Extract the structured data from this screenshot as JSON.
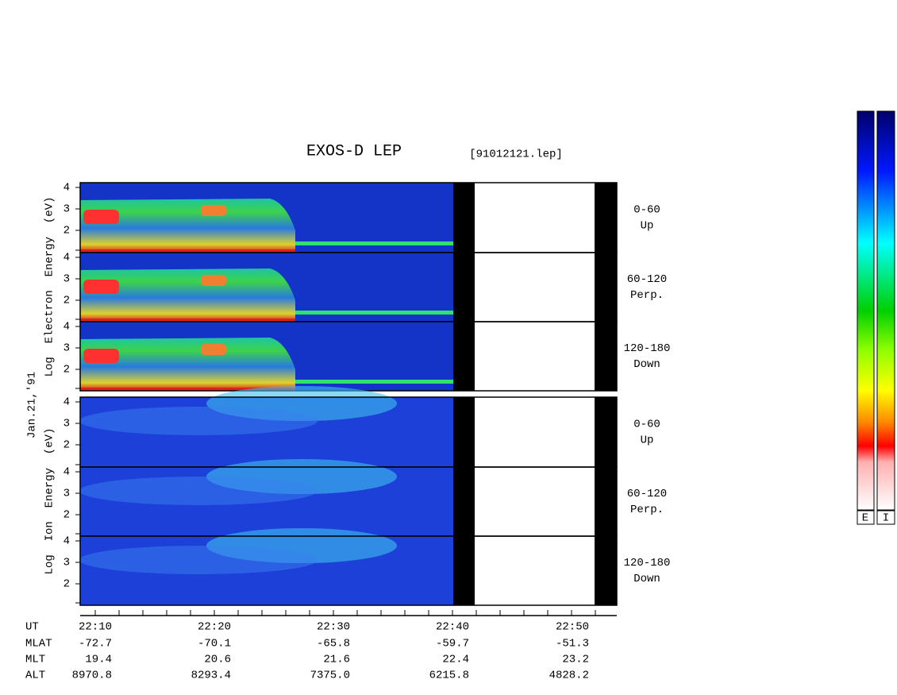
{
  "header": {
    "title": "EXOS-D LEP",
    "file": "[91012121.lep]"
  },
  "date": "Jan.21,'91",
  "electron": {
    "axis_label": "Log  Electron  Energy  (eV)",
    "panels": [
      {
        "angle": "0-60",
        "direction": "Up",
        "ticks": [
          "4",
          "3",
          "2"
        ]
      },
      {
        "angle": "60-120",
        "direction": "Perp.",
        "ticks": [
          "4",
          "3",
          "2"
        ]
      },
      {
        "angle": "120-180",
        "direction": "Down",
        "ticks": [
          "4",
          "3",
          "2"
        ]
      }
    ]
  },
  "ion": {
    "axis_label": "Log  Ion  Energy  (eV)",
    "panels": [
      {
        "angle": "0-60",
        "direction": "Up",
        "ticks": [
          "4",
          "3",
          "2"
        ]
      },
      {
        "angle": "60-120",
        "direction": "Perp.",
        "ticks": [
          "4",
          "3",
          "2"
        ]
      },
      {
        "angle": "120-180",
        "direction": "Down",
        "ticks": [
          "4",
          "3",
          "2"
        ]
      }
    ]
  },
  "ephemeris": {
    "rows": [
      {
        "label": "UT",
        "values": [
          "22:10",
          "22:20",
          "22:30",
          "22:40",
          "22:50"
        ]
      },
      {
        "label": "MLAT",
        "values": [
          "-72.7",
          "-70.1",
          "-65.8",
          "-59.7",
          "-51.3"
        ]
      },
      {
        "label": "MLT",
        "values": [
          "19.4",
          "20.6",
          "21.6",
          "22.4",
          "23.2"
        ]
      },
      {
        "label": "ALT",
        "values": [
          "8970.8",
          "8293.4",
          "7375.0",
          "6215.8",
          "4828.2"
        ]
      }
    ]
  },
  "colorbar": {
    "labels": [
      "E",
      "I"
    ]
  }
}
